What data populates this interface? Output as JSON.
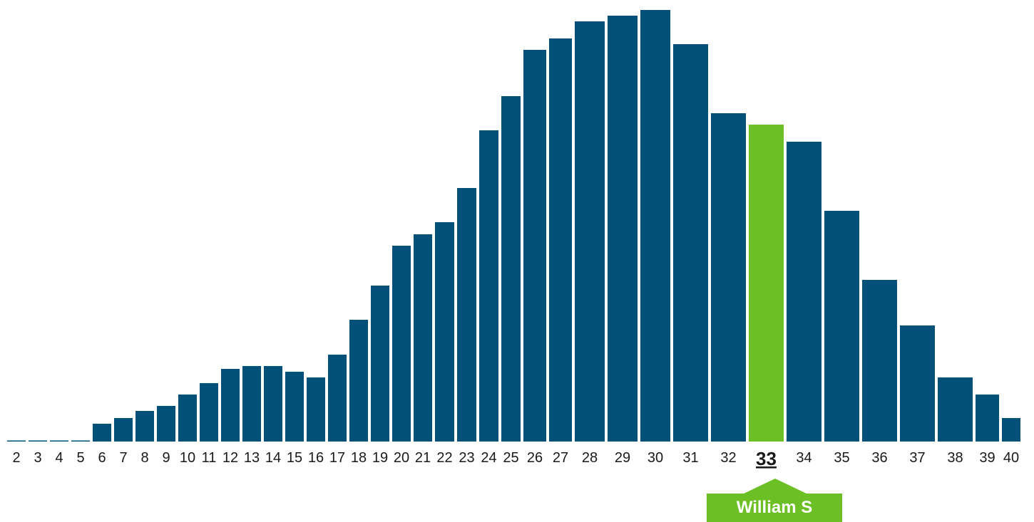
{
  "chart_data": {
    "type": "bar",
    "categories": [
      "2",
      "3",
      "4",
      "5",
      "6",
      "7",
      "8",
      "9",
      "10",
      "11",
      "12",
      "13",
      "14",
      "15",
      "16",
      "17",
      "18",
      "19",
      "20",
      "21",
      "22",
      "23",
      "24",
      "25",
      "26",
      "27",
      "28",
      "29",
      "30",
      "31",
      "32",
      "33",
      "34",
      "35",
      "36",
      "37",
      "38",
      "39",
      "40"
    ],
    "values": [
      1,
      1,
      1,
      1,
      25,
      33,
      43,
      50,
      66,
      82,
      102,
      106,
      106,
      98,
      90,
      122,
      171,
      219,
      275,
      291,
      308,
      356,
      437,
      485,
      550,
      566,
      590,
      598,
      606,
      558,
      461,
      445,
      421,
      324,
      227,
      163,
      90,
      66,
      33
    ],
    "ylim": [
      0,
      606
    ],
    "highlight_category": "33",
    "highlight_label": "William S",
    "grid": false,
    "colors": {
      "bar": "#005077",
      "highlight": "#6cbf24",
      "text": "#1a1a1a"
    }
  }
}
